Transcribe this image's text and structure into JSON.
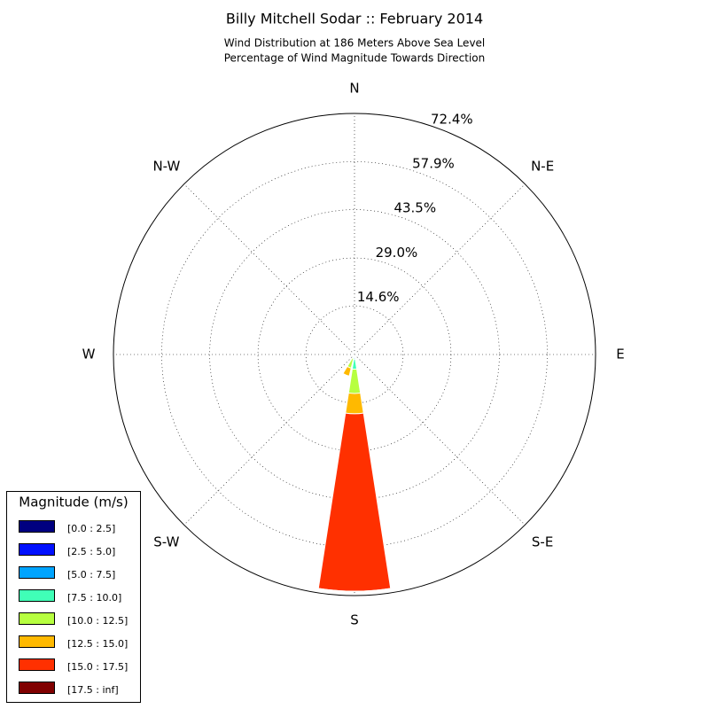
{
  "chart_data": {
    "type": "windrose",
    "title": "Billy Mitchell Sodar :: February 2014",
    "subtitle": [
      "Wind Distribution at 186 Meters Above Sea Level",
      "Percentage of Wind Magnitude Towards Direction"
    ],
    "categories": [
      "N",
      null,
      "N-E",
      null,
      "E",
      null,
      "S-E",
      null,
      "S",
      null,
      "S-W",
      null,
      "W",
      null,
      "N-W",
      null
    ],
    "rlim": [
      0,
      72.4
    ],
    "rticks": [
      {
        "value": 14.6,
        "label": "14.6%"
      },
      {
        "value": 29.0,
        "label": "29.0%"
      },
      {
        "value": 43.5,
        "label": "43.5%"
      },
      {
        "value": 57.9,
        "label": "57.9%"
      },
      {
        "value": 72.4,
        "label": "72.4%"
      }
    ],
    "grid": true,
    "legend_title": "Magnitude (m/s)",
    "legend_position": "lower-left",
    "series": [
      {
        "name": "[0.0 : 2.5]",
        "color": "#000080",
        "values": [
          0.1,
          0,
          0,
          0,
          0,
          0,
          0,
          0,
          0.1,
          0,
          0,
          0,
          0,
          0,
          0,
          0
        ]
      },
      {
        "name": "[2.5 : 5.0]",
        "color": "#0010ff",
        "values": [
          0,
          0,
          0,
          0,
          0,
          0,
          0,
          0,
          0.3,
          0.1,
          0,
          0,
          0,
          0,
          0,
          0
        ]
      },
      {
        "name": "[5.0 : 7.5]",
        "color": "#00a4ff",
        "values": [
          0,
          0,
          0,
          0,
          0,
          0,
          0,
          0,
          1.0,
          0.3,
          0,
          0,
          0,
          0,
          0,
          0
        ]
      },
      {
        "name": "[7.5 : 10.0]",
        "color": "#40ffb7",
        "values": [
          0,
          0,
          0,
          0,
          0,
          0,
          0,
          0,
          3.0,
          0.8,
          0,
          0,
          0,
          0,
          0,
          0
        ]
      },
      {
        "name": "[10.0 : 12.5]",
        "color": "#b7ff40",
        "values": [
          0,
          0,
          0,
          0,
          0,
          0,
          0,
          0,
          7.3,
          3.0,
          0,
          0,
          0,
          0,
          0,
          0
        ]
      },
      {
        "name": "[12.5 : 15.0]",
        "color": "#ffb900",
        "values": [
          0,
          0,
          0,
          0,
          0,
          0,
          0,
          0,
          6.1,
          2.5,
          0,
          0,
          0,
          0,
          0,
          0
        ]
      },
      {
        "name": "[15.0 : 17.5]",
        "color": "#ff3000",
        "values": [
          0,
          0,
          0,
          0,
          0,
          0,
          0,
          0,
          53.3,
          0,
          0,
          0,
          0,
          0,
          0,
          0
        ]
      },
      {
        "name": "[17.5 : inf]",
        "color": "#800000",
        "values": [
          0,
          0,
          0,
          0,
          0,
          0,
          0,
          0,
          0,
          0,
          0,
          0,
          0,
          0,
          0,
          0
        ]
      }
    ]
  }
}
